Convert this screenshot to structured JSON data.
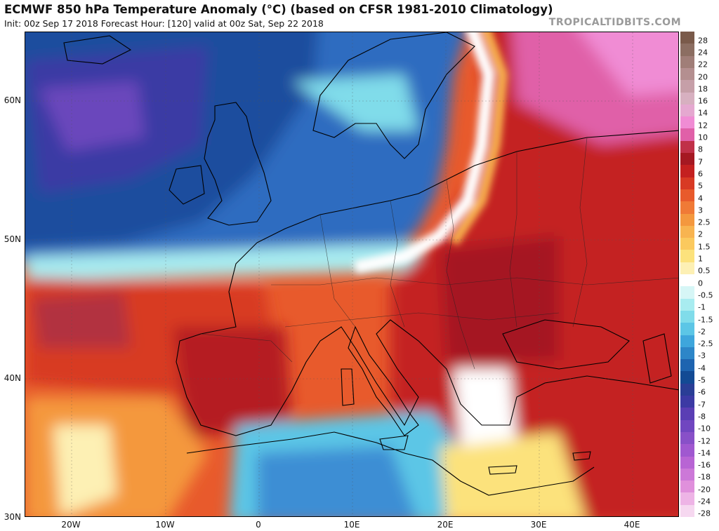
{
  "header": {
    "title": "ECMWF 850 hPa Temperature Anomaly (°C) (based on CFSR 1981-2010 Climatology)",
    "subtitle": "Init: 00z Sep 17 2018   Forecast Hour: [120]   valid at 00z Sat, Sep 22 2018",
    "brand": "TROPICALTIDBITS.COM"
  },
  "map": {
    "lat_labels": [
      "60N",
      "50N",
      "40N",
      "30N"
    ],
    "lon_labels": [
      "20W",
      "10W",
      "0",
      "10E",
      "20E",
      "30E",
      "40E"
    ],
    "lon_range": [
      -25,
      45
    ],
    "lat_range": [
      30,
      65
    ]
  },
  "colorbar": {
    "labels": [
      "28",
      "24",
      "22",
      "20",
      "18",
      "16",
      "14",
      "12",
      "10",
      "8",
      "7",
      "6",
      "5",
      "4",
      "3",
      "2.5",
      "2",
      "1.5",
      "1",
      "0.5",
      "0",
      "-0.5",
      "-1",
      "-1.5",
      "-2",
      "-2.5",
      "-3",
      "-4",
      "-5",
      "-6",
      "-7",
      "-8",
      "-10",
      "-12",
      "-14",
      "-16",
      "-18",
      "-20",
      "-24",
      "-28"
    ],
    "colors": [
      "#7a5a4a",
      "#8c6e62",
      "#a07e78",
      "#b48f90",
      "#c69fa8",
      "#d7b0c0",
      "#e5a8d0",
      "#f08cd4",
      "#e060a8",
      "#c03048",
      "#a51822",
      "#c42020",
      "#d83a24",
      "#e85a2c",
      "#f07a36",
      "#f4983e",
      "#f8b450",
      "#fbc95e",
      "#fce27c",
      "#fdf0b4",
      "#ffffff",
      "#d6f6f6",
      "#a8ecf0",
      "#80dcea",
      "#5cc6e6",
      "#3ea6dc",
      "#2d86c8",
      "#1e64b0",
      "#134a94",
      "#2a3e96",
      "#3c3aa4",
      "#5a3eb4",
      "#7046c0",
      "#8850c8",
      "#a058d0",
      "#b864d4",
      "#cc78d8",
      "#e090dc",
      "#eeb4e6",
      "#f6d8f0"
    ]
  }
}
